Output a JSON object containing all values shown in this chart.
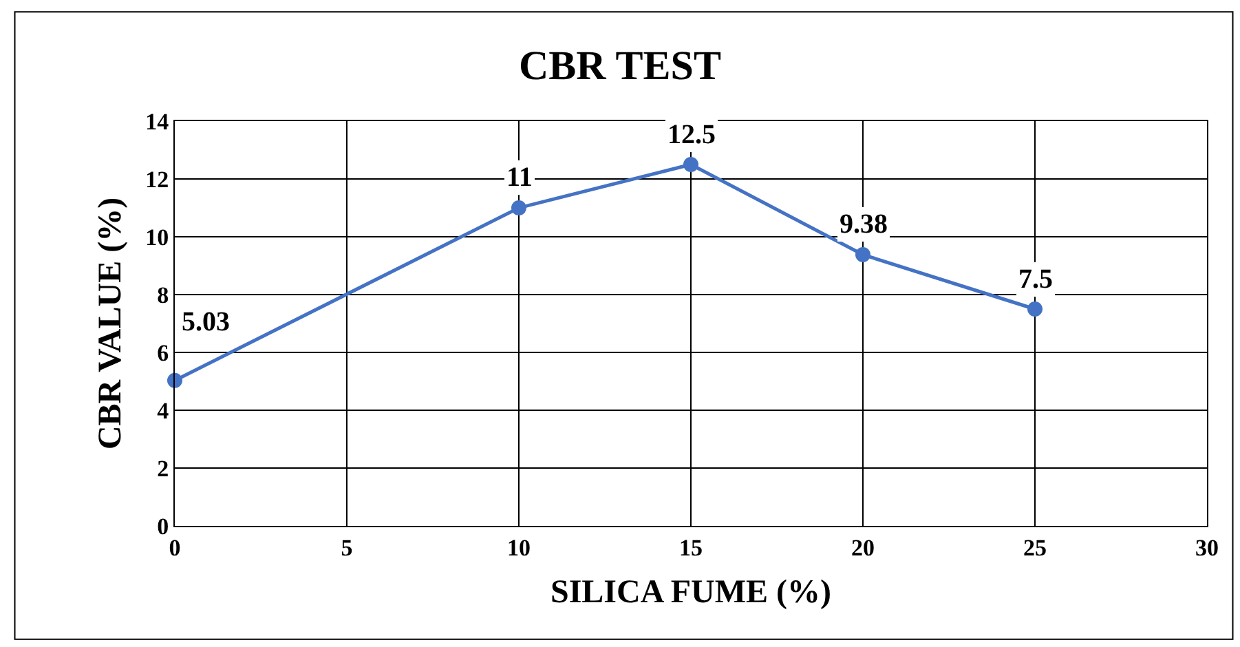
{
  "chart_data": {
    "type": "line",
    "title": "CBR TEST",
    "xlabel": "SILICA FUME (%)",
    "ylabel": "CBR VALUE (%)",
    "x": [
      0,
      10,
      15,
      20,
      25
    ],
    "series": [
      {
        "color": "#4472c4",
        "values": [
          5.03,
          11,
          12.5,
          9.38,
          7.5
        ]
      }
    ],
    "xlim": [
      0,
      30
    ],
    "xticks": [
      0,
      5,
      10,
      15,
      20,
      25,
      30
    ],
    "ylim": [
      0,
      14
    ],
    "yticks": [
      0,
      2,
      4,
      6,
      8,
      10,
      12,
      14
    ],
    "grid": true,
    "legend": false,
    "marker": "circle",
    "line_style": "solid",
    "data_labels": true
  }
}
